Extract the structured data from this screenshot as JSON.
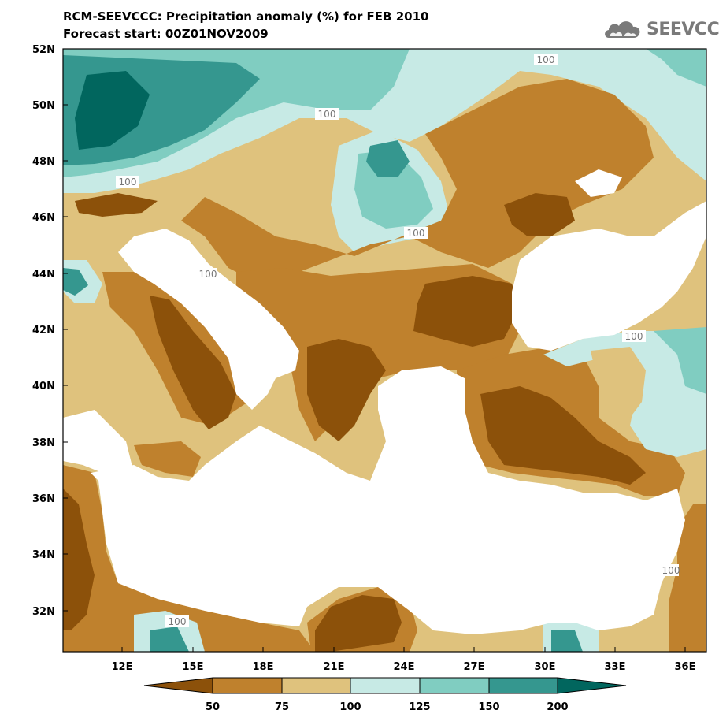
{
  "header": {
    "title_line1": "RCM-SEEVCCC: Precipitation anomaly (%) for FEB 2010",
    "title_line2": "Forecast start: 00Z01NOV2009",
    "logo_text": "SEEVCCC"
  },
  "map": {
    "lat_labels": [
      "52N",
      "50N",
      "48N",
      "46N",
      "44N",
      "42N",
      "40N",
      "38N",
      "36N",
      "34N",
      "32N"
    ],
    "lon_labels": [
      "12E",
      "15E",
      "18E",
      "21E",
      "24E",
      "27E",
      "30E",
      "33E",
      "36E"
    ],
    "contour_labels": [
      "100",
      "100",
      "100",
      "100",
      "100",
      "100",
      "100",
      "100"
    ]
  },
  "legend": {
    "levels": [
      "50",
      "75",
      "100",
      "125",
      "150",
      "200"
    ],
    "colors": [
      "#8c510a",
      "#bf812d",
      "#dfc27d",
      "#c7eae5",
      "#80cdc1",
      "#35978f",
      "#01665e"
    ]
  },
  "palette": {
    "sea": "#ffffff",
    "contour_line": "#a0a0a0"
  }
}
